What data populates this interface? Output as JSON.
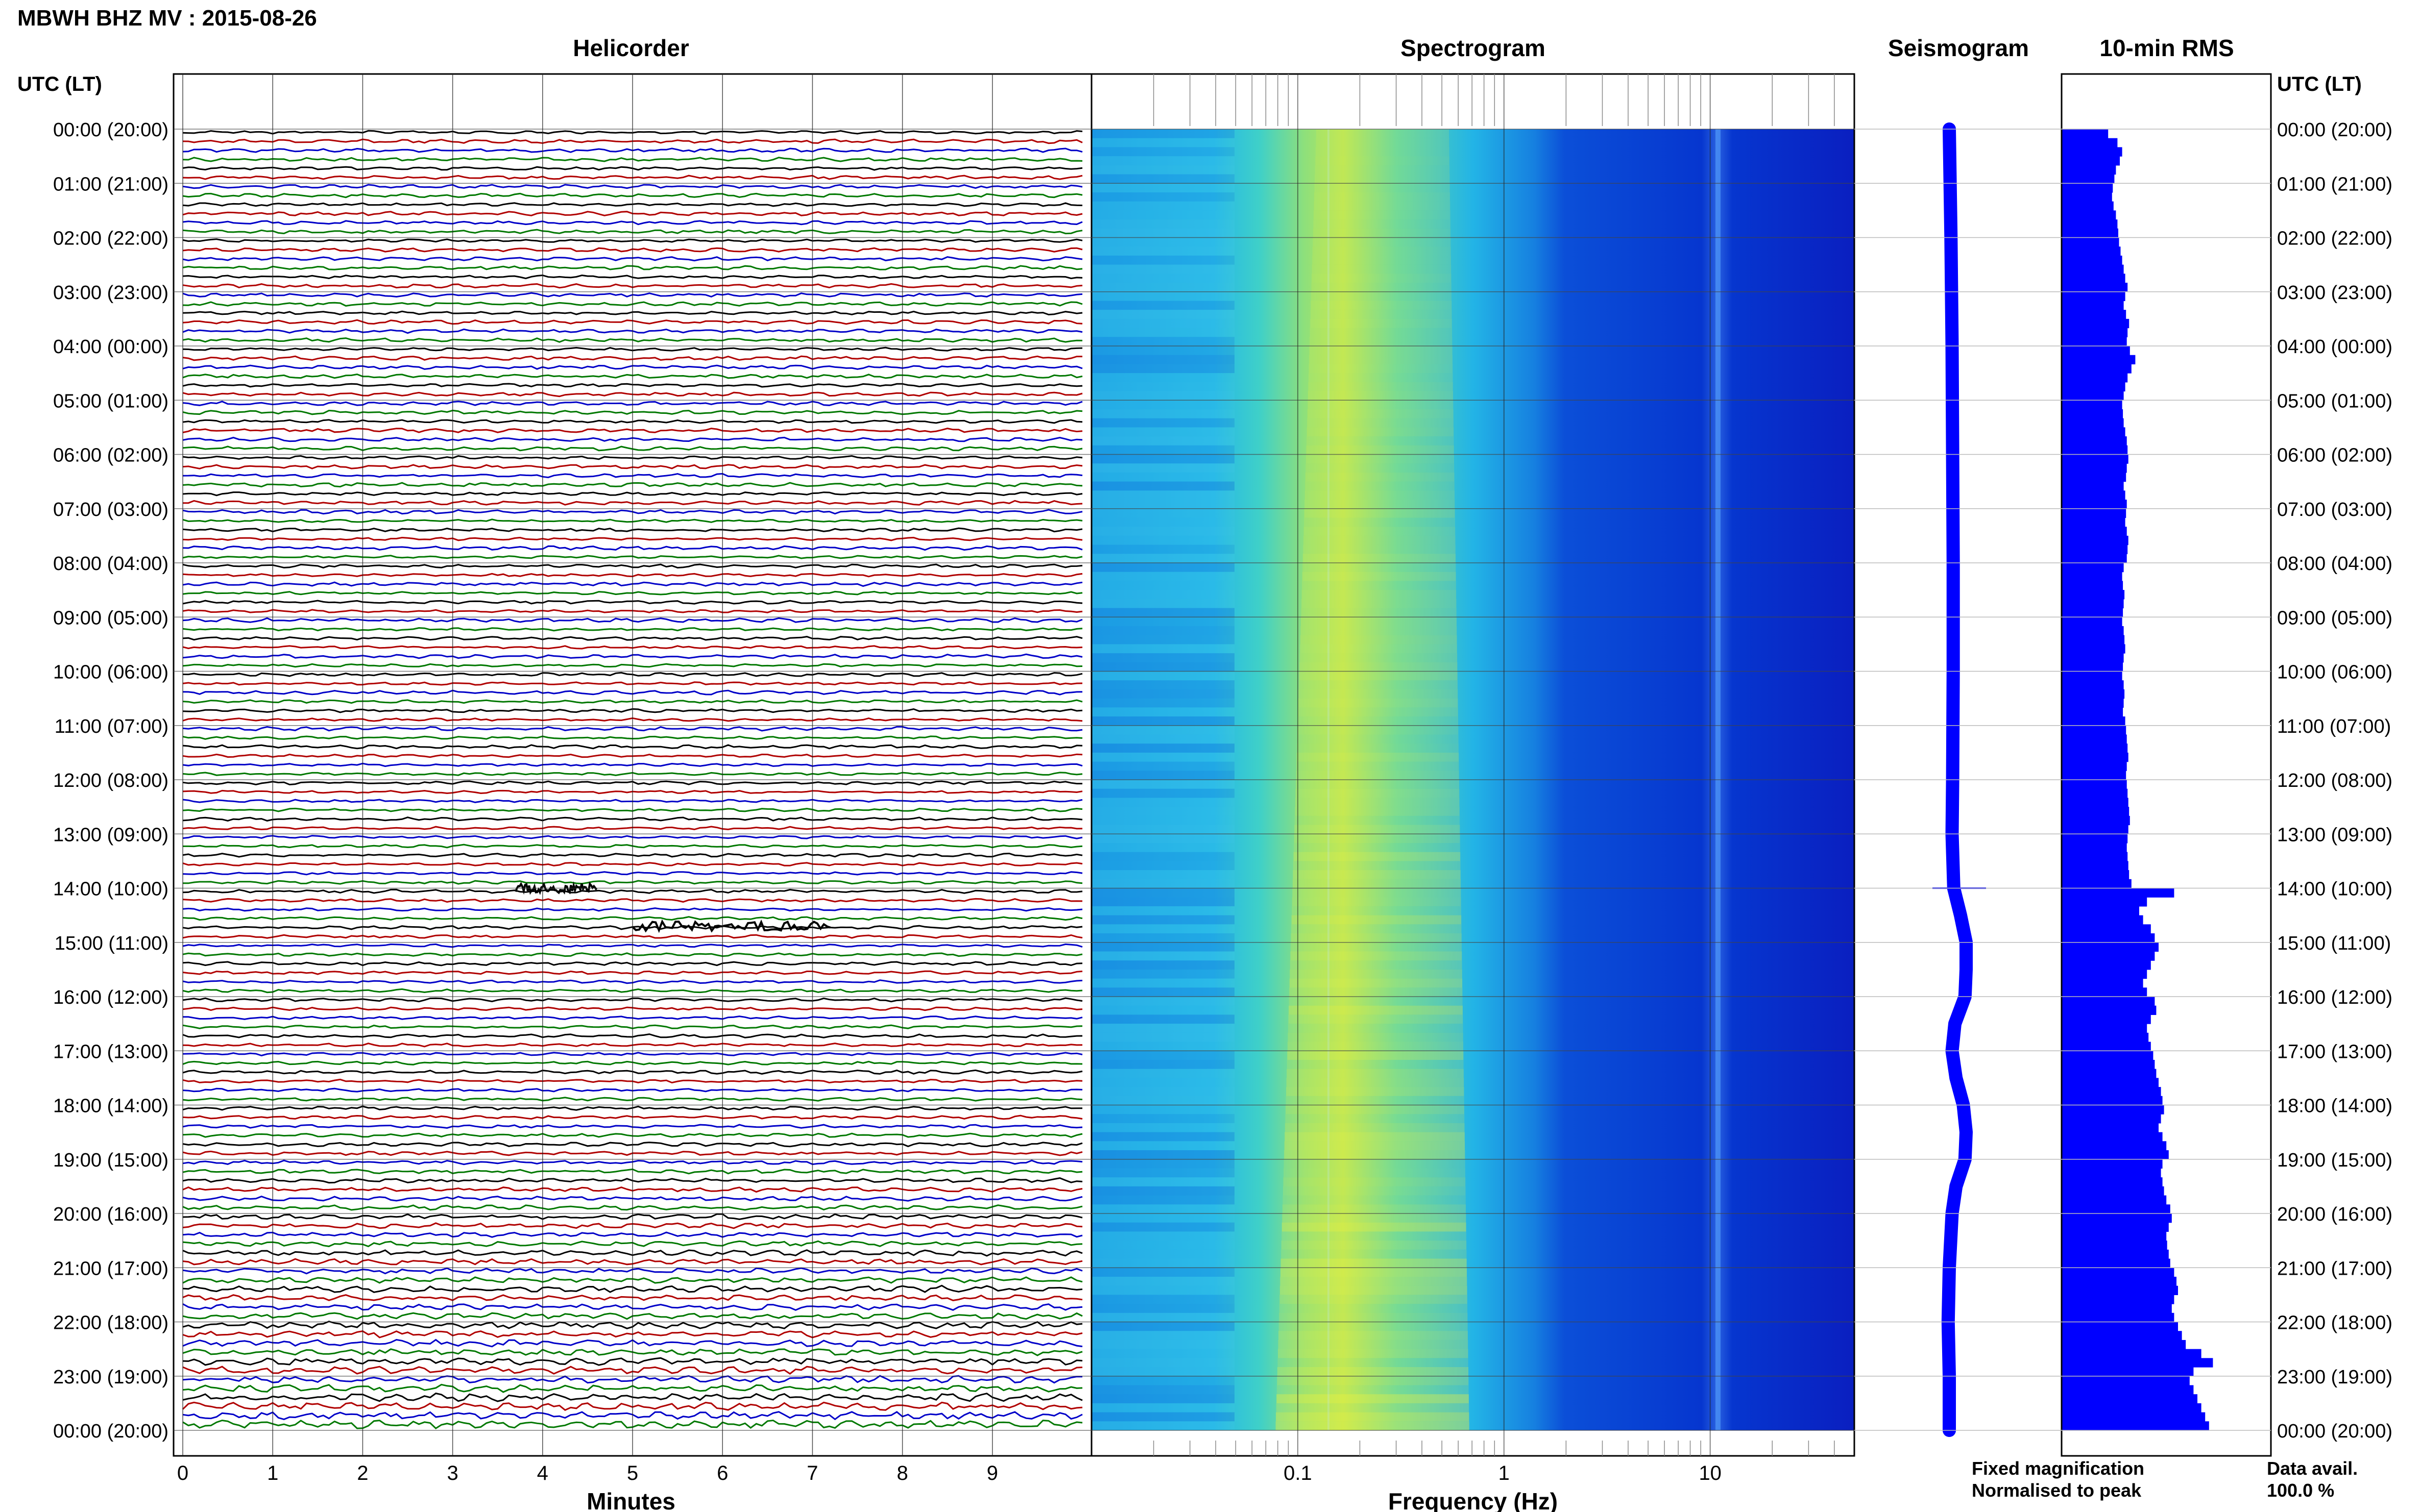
{
  "header": {
    "title": "MBWH BHZ MV : 2015-08-26"
  },
  "panels": {
    "helicorder_title": "Helicorder",
    "spectrogram_title": "Spectrogram",
    "seismogram_title": "Seismogram",
    "rms_title": "10-min RMS"
  },
  "axes": {
    "left_time_header": "UTC (LT)",
    "right_time_header": "UTC (LT)",
    "minutes_label": "Minutes",
    "frequency_label": "Frequency (Hz)"
  },
  "legend": {
    "fixed": "Fixed magnification",
    "fixed_color": "#0000ff",
    "normalised": "Normalised to peak",
    "normalised_color": "#ff0000"
  },
  "data_avail": {
    "label": "Data avail.",
    "value": "100.0 %"
  },
  "colors": {
    "trace_cycle": [
      "#000000",
      "#b00000",
      "#0000c8",
      "#007800"
    ],
    "seismogram": "#0000ff",
    "rms_bar": "#0000ff"
  },
  "chart_data": [
    {
      "type": "line",
      "name": "helicorder",
      "title": "Helicorder",
      "xlabel": "Minutes",
      "xlim": [
        0,
        10
      ],
      "x_ticks": [
        "0",
        "1",
        "2",
        "3",
        "4",
        "5",
        "6",
        "7",
        "8",
        "9"
      ],
      "y_ticks": [
        "00:00 (20:00)",
        "01:00 (21:00)",
        "02:00 (22:00)",
        "03:00 (23:00)",
        "04:00 (00:00)",
        "05:00 (01:00)",
        "06:00 (02:00)",
        "07:00 (03:00)",
        "08:00 (04:00)",
        "09:00 (05:00)",
        "10:00 (06:00)",
        "11:00 (07:00)",
        "12:00 (08:00)",
        "13:00 (09:00)",
        "14:00 (10:00)",
        "15:00 (11:00)",
        "16:00 (12:00)",
        "17:00 (13:00)",
        "18:00 (14:00)",
        "19:00 (15:00)",
        "20:00 (16:00)",
        "21:00 (17:00)",
        "22:00 (18:00)",
        "23:00 (19:00)",
        "00:00 (20:00)"
      ],
      "traces_per_hour": 6,
      "trace_minutes": 10,
      "grid": true,
      "events": [
        {
          "hour": 14.0,
          "minute_start": 3.7,
          "minute_end": 4.6
        },
        {
          "hour": 14.7,
          "minute_start": 5.0,
          "minute_end": 7.2
        }
      ]
    },
    {
      "type": "heatmap",
      "name": "spectrogram",
      "title": "Spectrogram",
      "xlabel": "Frequency (Hz)",
      "x_scale": "log",
      "xlim": [
        0.01,
        50
      ],
      "x_ticks": [
        "0.1",
        "1",
        "10"
      ],
      "y_range_hours": [
        0,
        24
      ],
      "grid": true,
      "colormap": "jet"
    },
    {
      "type": "line",
      "name": "seismogram",
      "title": "Seismogram",
      "y_range_hours": [
        0,
        24
      ],
      "x": [
        0,
        2,
        4,
        6,
        8,
        10,
        12,
        13,
        14,
        14.5,
        15,
        15.5,
        16,
        16.5,
        17,
        17.5,
        18,
        18.5,
        19,
        19.5,
        20,
        21,
        22,
        23,
        24
      ],
      "values": [
        0,
        0.03,
        0.05,
        0.06,
        0.07,
        0.07,
        0.06,
        0.05,
        0.08,
        0.2,
        0.3,
        0.3,
        0.28,
        0.1,
        0.05,
        0.12,
        0.25,
        0.3,
        0.28,
        0.12,
        0.05,
        0.0,
        -0.02,
        0.0,
        0.0
      ],
      "grid": true
    },
    {
      "type": "bar",
      "name": "rms",
      "title": "10-min RMS",
      "orientation": "horizontal",
      "interval_minutes": 10,
      "y_range_hours": [
        0,
        24
      ],
      "values": [
        0.6,
        0.72,
        0.78,
        0.75,
        0.7,
        0.68,
        0.66,
        0.65,
        0.67,
        0.7,
        0.72,
        0.73,
        0.74,
        0.76,
        0.78,
        0.8,
        0.82,
        0.85,
        0.82,
        0.8,
        0.83,
        0.87,
        0.85,
        0.84,
        0.88,
        0.95,
        0.9,
        0.85,
        0.82,
        0.8,
        0.78,
        0.79,
        0.8,
        0.82,
        0.84,
        0.85,
        0.86,
        0.84,
        0.83,
        0.8,
        0.82,
        0.84,
        0.83,
        0.82,
        0.84,
        0.86,
        0.85,
        0.84,
        0.8,
        0.78,
        0.79,
        0.81,
        0.8,
        0.79,
        0.78,
        0.8,
        0.81,
        0.82,
        0.8,
        0.79,
        0.78,
        0.8,
        0.81,
        0.8,
        0.79,
        0.82,
        0.83,
        0.84,
        0.85,
        0.86,
        0.84,
        0.83,
        0.84,
        0.85,
        0.86,
        0.87,
        0.88,
        0.86,
        0.85,
        0.84,
        0.85,
        0.86,
        0.87,
        0.9,
        1.45,
        1.1,
        1.0,
        1.05,
        1.15,
        1.2,
        1.25,
        1.2,
        1.15,
        1.1,
        1.05,
        1.1,
        1.2,
        1.22,
        1.15,
        1.1,
        1.12,
        1.15,
        1.18,
        1.2,
        1.22,
        1.25,
        1.28,
        1.3,
        1.32,
        1.28,
        1.25,
        1.3,
        1.35,
        1.38,
        1.3,
        1.28,
        1.3,
        1.32,
        1.35,
        1.4,
        1.42,
        1.38,
        1.35,
        1.36,
        1.38,
        1.4,
        1.45,
        1.48,
        1.5,
        1.45,
        1.42,
        1.45,
        1.5,
        1.55,
        1.6,
        1.8,
        1.95,
        1.7,
        1.65,
        1.7,
        1.75,
        1.8,
        1.85,
        1.9
      ],
      "xlim": [
        0,
        2.5
      ],
      "grid": false
    }
  ]
}
